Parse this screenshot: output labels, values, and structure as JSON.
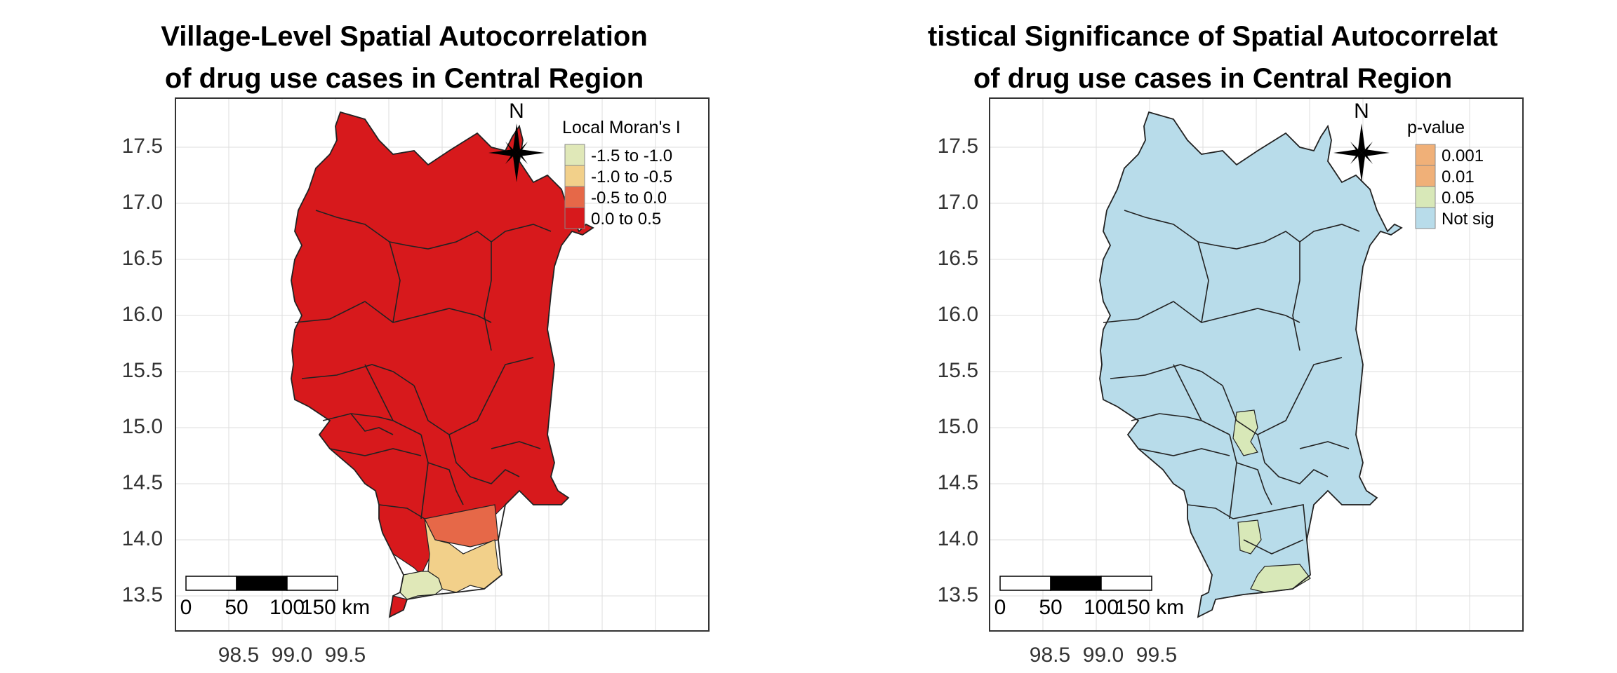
{
  "colors": {
    "moran_pos": "#D7191C",
    "moran_mid": "#E66848",
    "moran_neg1": "#F2D08A",
    "moran_neg2": "#E0E8B8",
    "p001": "#F0B078",
    "p01": "#F0B078",
    "p05": "#D8E8B8",
    "notsig": "#B8DCEA",
    "grid": "#dedede"
  },
  "maps": [
    {
      "id": "left",
      "title_line1": "Village-Level Spatial Autocorrelation",
      "title_line2": "of drug use cases in Central Region",
      "legend_title": "Local Moran's I",
      "legend_items": [
        {
          "label": "-1.5 to -1.0",
          "color": "#E0E8B8"
        },
        {
          "label": "-1.0 to -0.5",
          "color": "#F2D08A"
        },
        {
          "label": "-0.5 to 0.0",
          "color": "#E66848"
        },
        {
          "label": "0.0 to 0.5",
          "color": "#D7191C"
        }
      ]
    },
    {
      "id": "right",
      "title_line1": "tistical Significance of Spatial Autocorrelat",
      "title_line2": "of drug use cases in Central Region",
      "legend_title": "p-value",
      "legend_items": [
        {
          "label": "0.001",
          "color": "#F0B078"
        },
        {
          "label": "0.01",
          "color": "#F0B078"
        },
        {
          "label": "0.05",
          "color": "#D8E8B8"
        },
        {
          "label": "Not sig",
          "color": "#B8DCEA"
        }
      ]
    }
  ],
  "axes": {
    "y_ticks": [
      "17.5",
      "17.0",
      "16.5",
      "16.0",
      "15.5",
      "15.0",
      "14.5",
      "14.0",
      "13.5"
    ],
    "x_ticks": [
      "98.5",
      "99.0",
      "99.5"
    ]
  },
  "scalebar": {
    "labels": [
      "0",
      "50",
      "100",
      "150 km"
    ]
  },
  "north_arrow": {
    "label": "N"
  }
}
